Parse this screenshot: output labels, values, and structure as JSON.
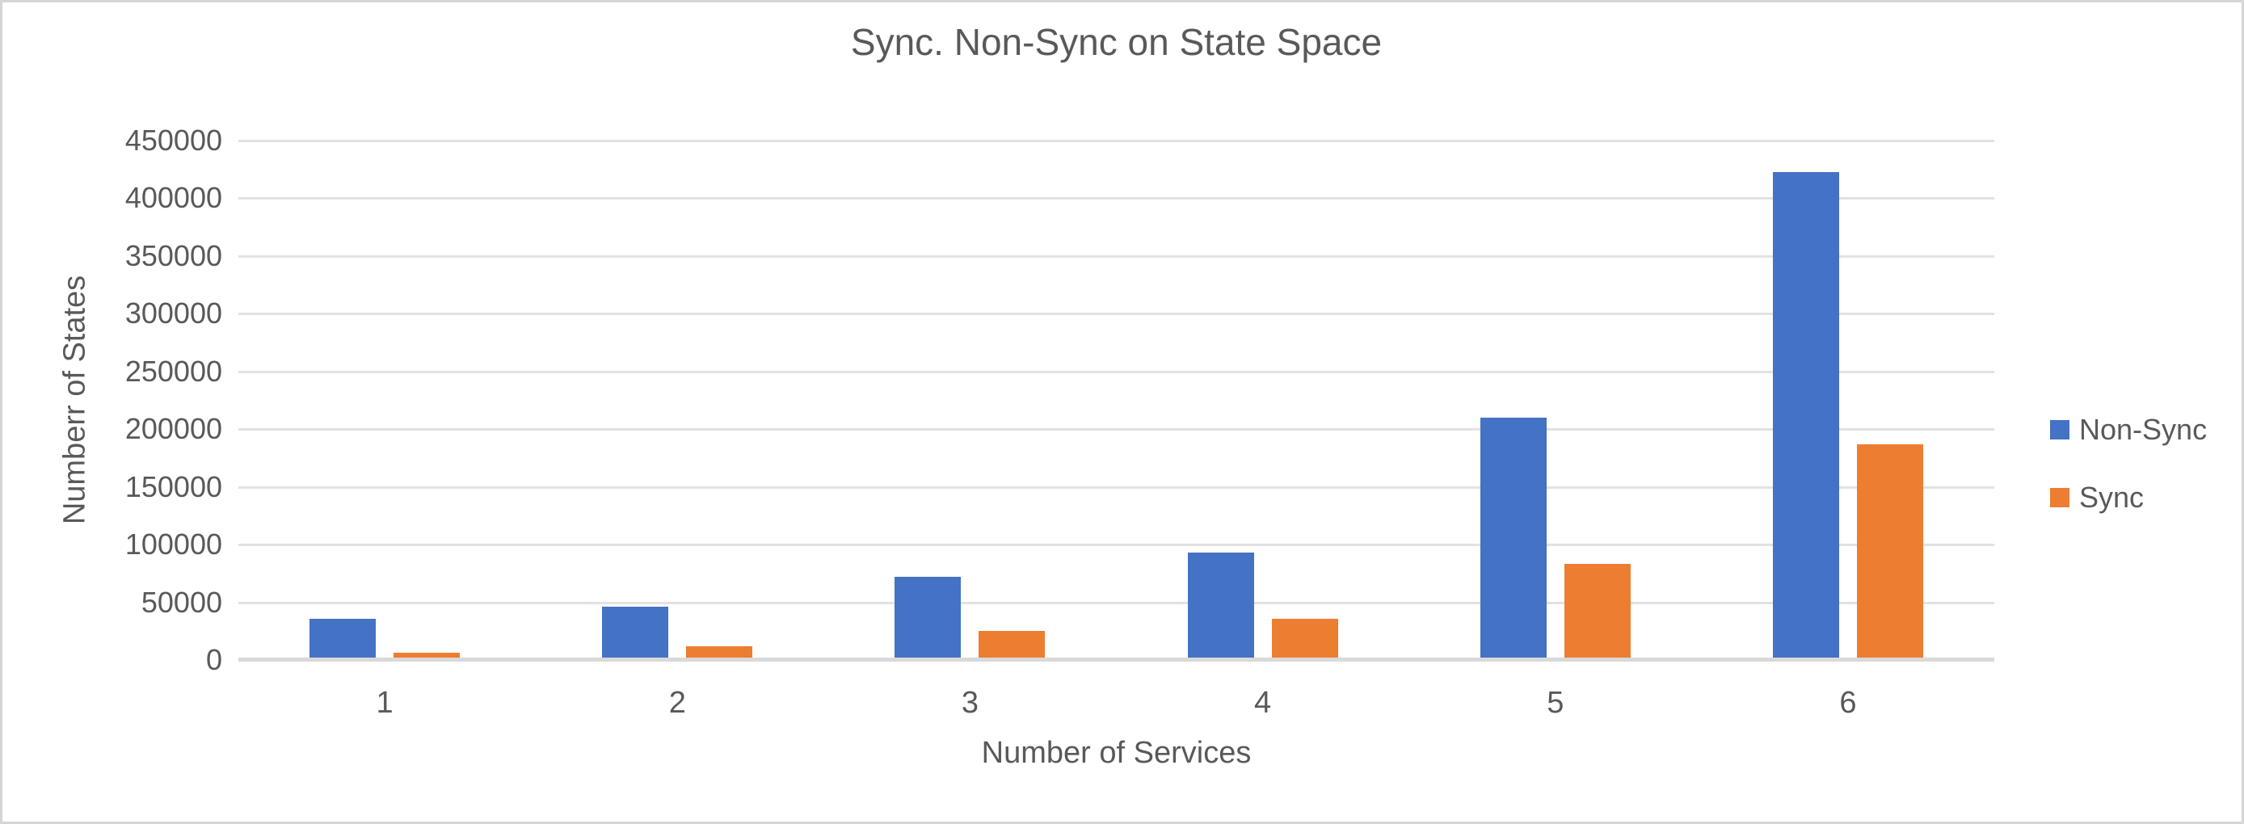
{
  "window": {
    "background_color": "#ffffff",
    "border_color": "#d5d5d5"
  },
  "colors": {
    "non_sync_blue": "#4472C4",
    "sync_orange": "#ED7D31",
    "gridline": "#e2e2e2",
    "axis_line": "#d9d9d9",
    "text_gray": "#595959"
  },
  "chart_data": {
    "type": "bar",
    "title": "Sync. Non-Sync on State Space",
    "xlabel": "Number of Services",
    "ylabel": "Numberr of States",
    "categories": [
      "1",
      "2",
      "3",
      "4",
      "5",
      "6"
    ],
    "series": [
      {
        "name": "Non-Sync",
        "color": "#4472C4",
        "values": [
          36000,
          46000,
          72000,
          93000,
          210000,
          423000
        ]
      },
      {
        "name": "Sync",
        "color": "#ED7D31",
        "values": [
          6000,
          12000,
          25000,
          36000,
          83000,
          187000
        ]
      }
    ],
    "ylim": [
      0,
      450000
    ],
    "ytick_step": 50000,
    "ytick_labels": [
      "0",
      "50000",
      "100000",
      "150000",
      "200000",
      "250000",
      "300000",
      "350000",
      "400000",
      "450000"
    ],
    "grid": true,
    "legend_position": "right"
  }
}
